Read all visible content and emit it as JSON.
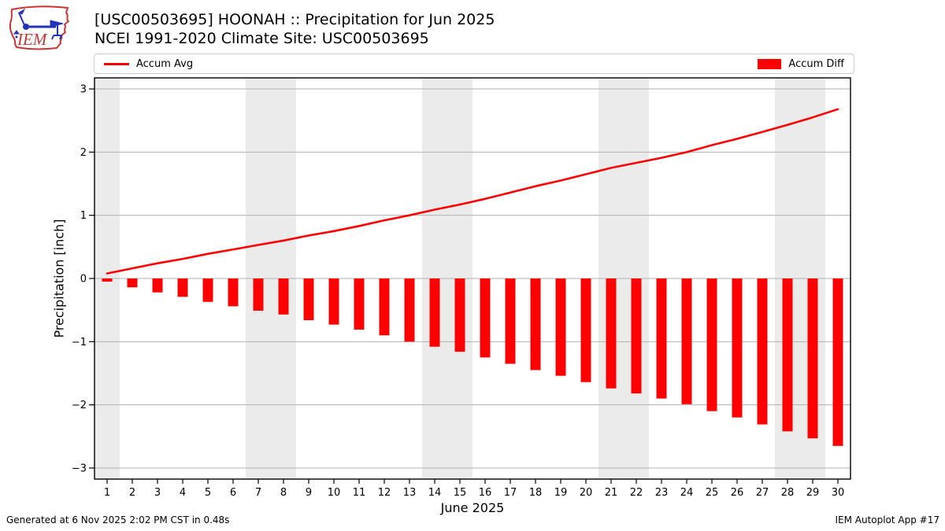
{
  "header": {
    "title_line1": "[USC00503695] HOONAH :: Precipitation for Jun 2025",
    "title_line2": "NCEI 1991-2020 Climate Site: USC00503695",
    "logo_text": "IEM"
  },
  "legend": {
    "avg_label": "Accum Avg",
    "diff_label": "Accum Diff"
  },
  "footer": {
    "left": "Generated at 6 Nov 2025 2:02 PM CST in 0.48s",
    "right": "IEM Autoplot App #17"
  },
  "colors": {
    "series_red": "#ff0000",
    "weekend_band": "#ebebeb",
    "gridline": "#b0b0b0",
    "axis": "#000000",
    "logo_red": "#cc3333",
    "logo_blue": "#2233bb"
  },
  "chart_data": {
    "type": "bar",
    "title": "[USC00503695] HOONAH :: Precipitation for Jun 2025",
    "subtitle": "NCEI 1991-2020 Climate Site: USC00503695",
    "xlabel": "June 2025",
    "ylabel": "Precipitation [inch]",
    "x": [
      1,
      2,
      3,
      4,
      5,
      6,
      7,
      8,
      9,
      10,
      11,
      12,
      13,
      14,
      15,
      16,
      17,
      18,
      19,
      20,
      21,
      22,
      23,
      24,
      25,
      26,
      27,
      28,
      29,
      30
    ],
    "series": [
      {
        "name": "Accum Avg",
        "type": "line",
        "color": "#ff0000",
        "values": [
          0.08,
          0.16,
          0.24,
          0.31,
          0.39,
          0.46,
          0.53,
          0.6,
          0.68,
          0.75,
          0.83,
          0.92,
          1.0,
          1.09,
          1.17,
          1.26,
          1.36,
          1.46,
          1.55,
          1.65,
          1.75,
          1.83,
          1.91,
          2.0,
          2.11,
          2.21,
          2.32,
          2.43,
          2.55,
          2.68
        ]
      },
      {
        "name": "Accum Diff",
        "type": "bar",
        "color": "#ff0000",
        "values": [
          -0.05,
          -0.14,
          -0.22,
          -0.29,
          -0.37,
          -0.44,
          -0.51,
          -0.57,
          -0.66,
          -0.73,
          -0.81,
          -0.9,
          -1.0,
          -1.08,
          -1.16,
          -1.25,
          -1.35,
          -1.45,
          -1.54,
          -1.64,
          -1.74,
          -1.82,
          -1.9,
          -1.99,
          -2.1,
          -2.2,
          -2.31,
          -2.42,
          -2.53,
          -2.65
        ]
      }
    ],
    "ylim": [
      -3.175,
      3.175
    ],
    "yticks": [
      -3,
      -2,
      -1,
      0,
      1,
      2,
      3
    ],
    "weekend_bands": [
      [
        0.5,
        1.5
      ],
      [
        6.5,
        8.5
      ],
      [
        13.5,
        15.5
      ],
      [
        20.5,
        22.5
      ],
      [
        27.5,
        29.5
      ]
    ],
    "grid": true,
    "legend_position": "top"
  }
}
